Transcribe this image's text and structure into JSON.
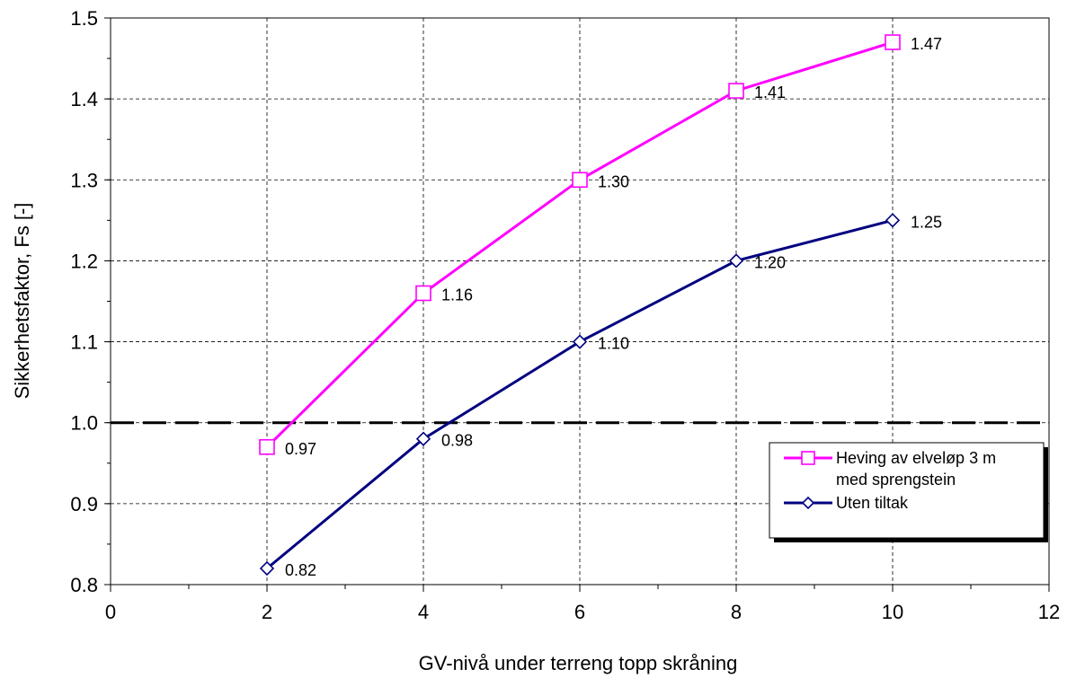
{
  "chart_data": {
    "type": "line",
    "xlabel": "GV-nivå under terreng topp skråning",
    "ylabel": "Sikkerhetsfaktor, Fs [-]",
    "xlim": [
      0,
      12
    ],
    "ylim": [
      0.8,
      1.5
    ],
    "x_ticks": [
      "0",
      "2",
      "4",
      "6",
      "8",
      "10",
      "12"
    ],
    "y_ticks": [
      "0.8",
      "0.9",
      "1.0",
      "1.1",
      "1.2",
      "1.3",
      "1.4",
      "1.5"
    ],
    "grid": true,
    "legend_position": "right",
    "reference_line": {
      "y": 1.0,
      "style": "dashed",
      "color": "#000000"
    },
    "series": [
      {
        "name": "Heving av elveløp 3 m med sprengstein",
        "legend_lines": [
          "Heving av elveløp 3 m",
          "med sprengstein"
        ],
        "color": "#ff00ff",
        "marker": "square",
        "x": [
          2,
          4,
          6,
          8,
          10
        ],
        "y": [
          0.97,
          1.16,
          1.3,
          1.41,
          1.47
        ],
        "labels": [
          "0.97",
          "1.16",
          "1.30",
          "1.41",
          "1.47"
        ]
      },
      {
        "name": "Uten tiltak",
        "legend_lines": [
          "Uten tiltak"
        ],
        "color": "#000080",
        "marker": "diamond",
        "x": [
          2,
          4,
          6,
          8,
          10
        ],
        "y": [
          0.82,
          0.98,
          1.1,
          1.2,
          1.25
        ],
        "labels": [
          "0.82",
          "0.98",
          "1.10",
          "1.20",
          "1.25"
        ]
      }
    ]
  }
}
